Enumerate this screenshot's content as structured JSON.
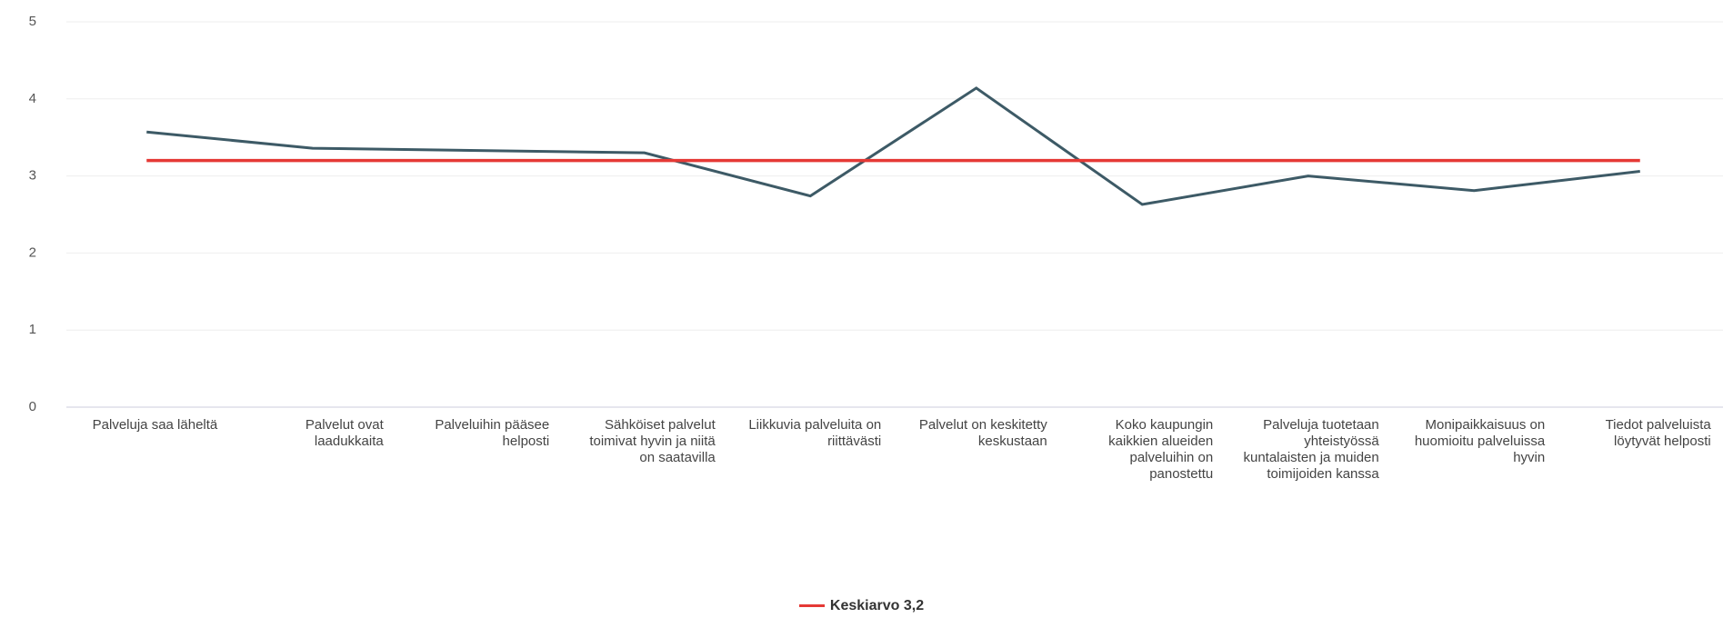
{
  "chart_data": {
    "type": "line",
    "categories": [
      "Palveluja saa läheltä",
      "Palvelut ovat laadukkaita",
      "Palveluihin pääsee helposti",
      "Sähköiset palvelut toimivat hyvin ja niitä on saatavilla",
      "Liikkuvia palveluita on riittävästi",
      "Palvelut on keskitetty keskustaan",
      "Koko kaupungin kaikkien alueiden palveluihin on panostettu",
      "Palveluja tuotetaan yhteistyössä kuntalaisten ja muiden toimijoiden kanssa",
      "Monipaikkaisuus on huomioitu palveluissa hyvin",
      "Tiedot palveluista löytyvät helposti"
    ],
    "values": [
      3.57,
      3.36,
      3.33,
      3.3,
      2.74,
      4.14,
      2.63,
      3.0,
      2.81,
      3.06
    ],
    "color": "#3d5a66",
    "average": {
      "label": "Keskiarvo 3,2",
      "value": 3.2,
      "color": "#e53935"
    },
    "ylim": [
      0,
      5
    ],
    "yticks": [
      0,
      1,
      2,
      3,
      4,
      5
    ],
    "grid": true
  }
}
